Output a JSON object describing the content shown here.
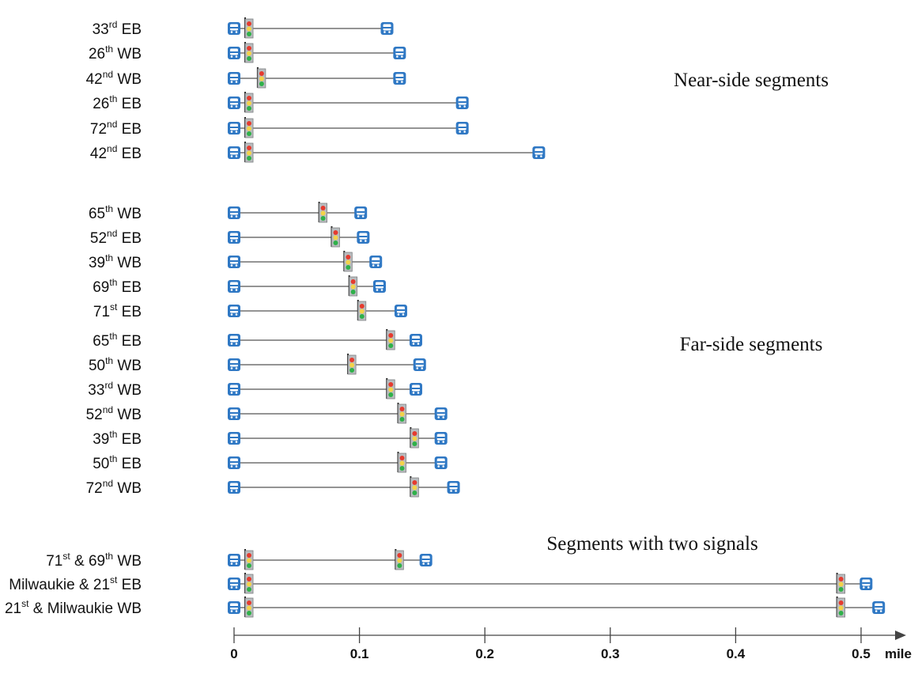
{
  "groups": [
    {
      "label": "Near-side segments",
      "rows": [
        {
          "name": "33",
          "suffix": "rd",
          "dir": "EB",
          "stop1": 0,
          "signals": [
            0.012
          ],
          "stop2": 0.122
        },
        {
          "name": "26",
          "suffix": "th",
          "dir": "WB",
          "stop1": 0,
          "signals": [
            0.012
          ],
          "stop2": 0.132
        },
        {
          "name": "42",
          "suffix": "nd",
          "dir": "WB",
          "stop1": 0,
          "signals": [
            0.022
          ],
          "stop2": 0.132
        },
        {
          "name": "26",
          "suffix": "th",
          "dir": "EB",
          "stop1": 0,
          "signals": [
            0.012
          ],
          "stop2": 0.182
        },
        {
          "name": "72",
          "suffix": "nd",
          "dir": "EB",
          "stop1": 0,
          "signals": [
            0.012
          ],
          "stop2": 0.182
        },
        {
          "name": "42",
          "suffix": "nd",
          "dir": "EB",
          "stop1": 0,
          "signals": [
            0.012
          ],
          "stop2": 0.243
        }
      ]
    },
    {
      "label": "Far-side segments",
      "rows": [
        {
          "name": "65",
          "suffix": "th",
          "dir": "WB",
          "stop1": 0,
          "signals": [
            0.071
          ],
          "stop2": 0.101
        },
        {
          "name": "52",
          "suffix": "nd",
          "dir": "EB",
          "stop1": 0,
          "signals": [
            0.081
          ],
          "stop2": 0.103
        },
        {
          "name": "39",
          "suffix": "th",
          "dir": "WB",
          "stop1": 0,
          "signals": [
            0.091
          ],
          "stop2": 0.113
        },
        {
          "name": "69",
          "suffix": "th",
          "dir": "EB",
          "stop1": 0,
          "signals": [
            0.095
          ],
          "stop2": 0.116
        },
        {
          "name": "71",
          "suffix": "st",
          "dir": "EB",
          "stop1": 0,
          "signals": [
            0.102
          ],
          "stop2": 0.133
        },
        {
          "name": "65",
          "suffix": "th",
          "dir": "EB",
          "stop1": 0,
          "signals": [
            0.125
          ],
          "stop2": 0.145
        },
        {
          "name": "50",
          "suffix": "th",
          "dir": "WB",
          "stop1": 0,
          "signals": [
            0.094
          ],
          "stop2": 0.148
        },
        {
          "name": "33",
          "suffix": "rd",
          "dir": "WB",
          "stop1": 0,
          "signals": [
            0.125
          ],
          "stop2": 0.145
        },
        {
          "name": "52",
          "suffix": "nd",
          "dir": "WB",
          "stop1": 0,
          "signals": [
            0.134
          ],
          "stop2": 0.165
        },
        {
          "name": "39",
          "suffix": "th",
          "dir": "EB",
          "stop1": 0,
          "signals": [
            0.144
          ],
          "stop2": 0.165
        },
        {
          "name": "50",
          "suffix": "th",
          "dir": "EB",
          "stop1": 0,
          "signals": [
            0.134
          ],
          "stop2": 0.165
        },
        {
          "name": "72",
          "suffix": "nd",
          "dir": "WB",
          "stop1": 0,
          "signals": [
            0.144
          ],
          "stop2": 0.175
        }
      ]
    },
    {
      "label": "Segments with two signals",
      "rows": [
        {
          "name": "71",
          "suffix": "st",
          "mid": " & 69",
          "suffix2": "th",
          "dir": "WB",
          "stop1": 0,
          "signals": [
            0.012,
            0.132
          ],
          "stop2": 0.153
        },
        {
          "name": "Milwaukie & 21",
          "suffix": "st",
          "dir": "EB",
          "stop1": 0,
          "signals": [
            0.012,
            0.484
          ],
          "stop2": 0.504
        },
        {
          "name": "21",
          "suffix": "st",
          "mid": " & Milwaukie WB",
          "dir": "",
          "stop1": 0,
          "signals": [
            0.012,
            0.484
          ],
          "stop2": 0.514
        }
      ]
    }
  ],
  "axis": {
    "ticks": [
      0,
      0.1,
      0.2,
      0.3,
      0.4,
      0.5
    ],
    "tick_labels": [
      "0",
      "0.1",
      "0.2",
      "0.3",
      "0.4",
      "0.5"
    ],
    "unit": "mile",
    "range": [
      0,
      0.5
    ]
  },
  "icons": {
    "stop": "bus-stop-icon",
    "signal": "traffic-signal-icon"
  },
  "colors": {
    "bus_blue": "#2f78c4",
    "line": "#555555",
    "signal_red": "#e53b2f",
    "signal_yellow": "#f3d34a",
    "signal_green": "#2fb14a"
  }
}
